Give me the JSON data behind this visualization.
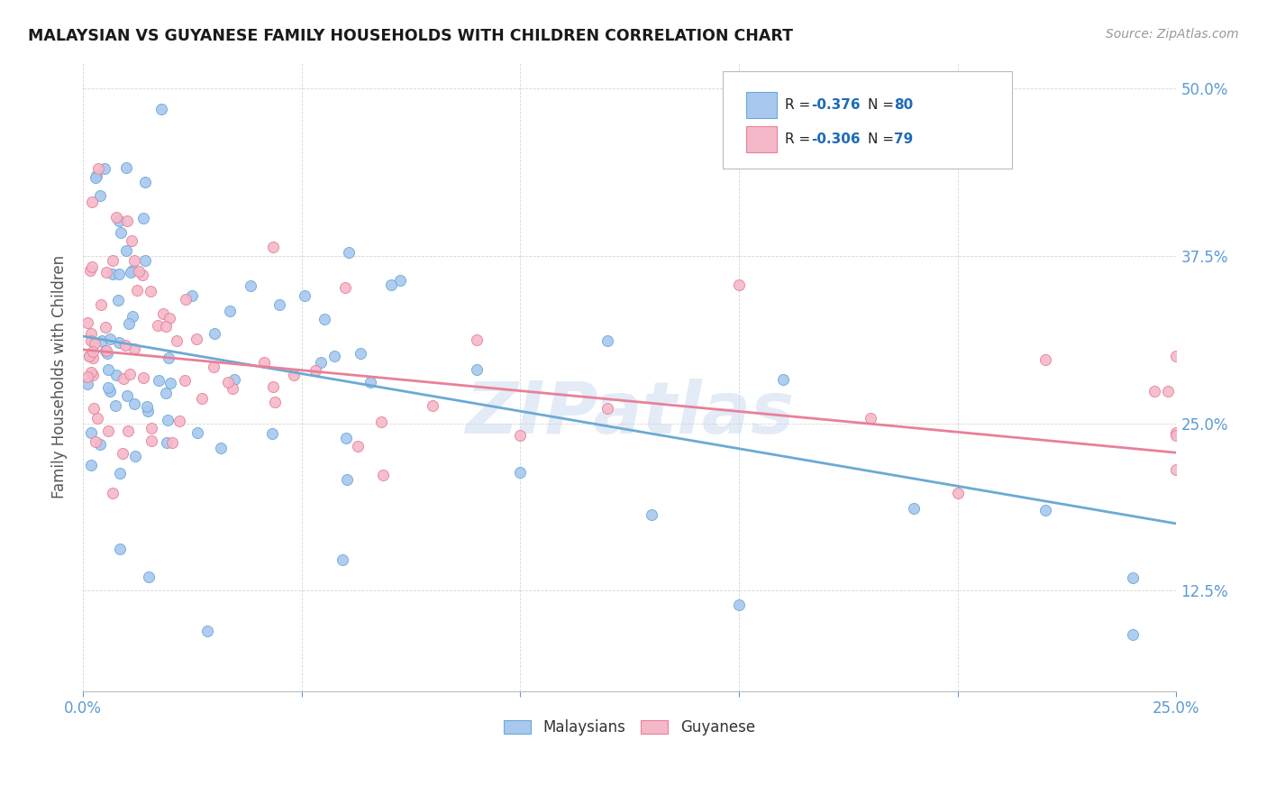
{
  "title": "MALAYSIAN VS GUYANESE FAMILY HOUSEHOLDS WITH CHILDREN CORRELATION CHART",
  "source": "Source: ZipAtlas.com",
  "ylabel_label": "Family Households with Children",
  "x_min": 0.0,
  "x_max": 0.25,
  "y_min": 0.05,
  "y_max": 0.52,
  "y_ticks": [
    0.125,
    0.25,
    0.375,
    0.5
  ],
  "y_tick_labels": [
    "12.5%",
    "25.0%",
    "37.5%",
    "50.0%"
  ],
  "x_ticks": [
    0.0,
    0.05,
    0.1,
    0.15,
    0.2,
    0.25
  ],
  "malaysian_scatter_color": "#a8c8f0",
  "malaysian_edge_color": "#6aaad4",
  "guyanese_scatter_color": "#f5b8c8",
  "guyanese_edge_color": "#e88098",
  "malaysian_line_color": "#6aaad4",
  "guyanese_line_color": "#e88098",
  "background_color": "#ffffff",
  "grid_color": "#cccccc",
  "tick_color": "#5b9bd5",
  "legend_text_color": "#222222",
  "legend_value_color": "#1e6bb8",
  "R_malaysian": -0.376,
  "N_malaysian": 80,
  "R_guyanese": -0.306,
  "N_guyanese": 79,
  "watermark": "ZIPatlas",
  "mal_line_x0": 0.0,
  "mal_line_y0": 0.315,
  "mal_line_x1": 0.25,
  "mal_line_y1": 0.175,
  "guy_line_x0": 0.0,
  "guy_line_y0": 0.305,
  "guy_line_x1": 0.25,
  "guy_line_y1": 0.228
}
